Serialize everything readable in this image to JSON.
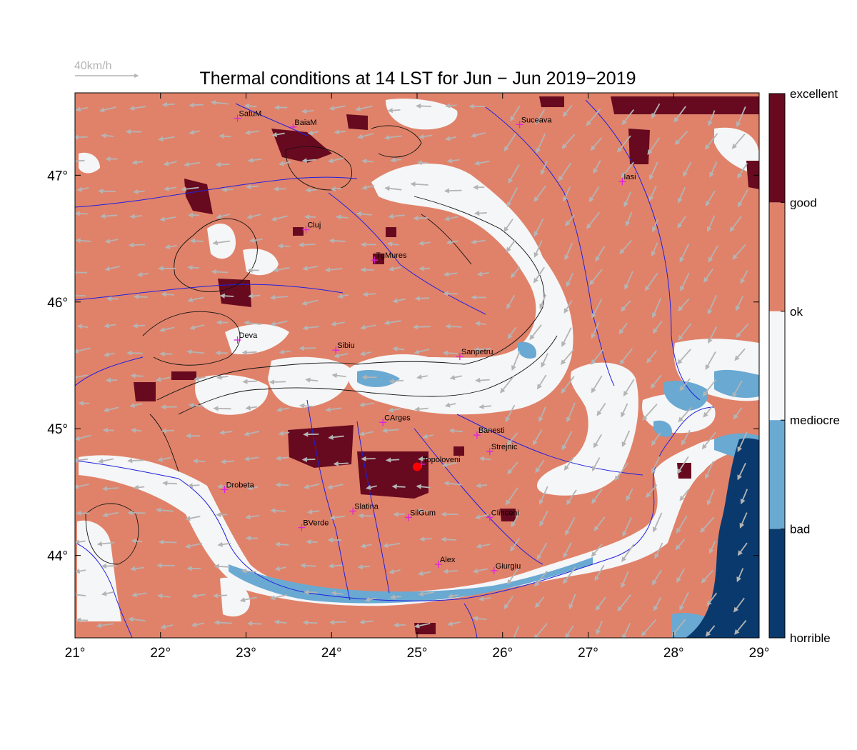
{
  "chart_data": {
    "type": "heatmap",
    "title": "Thermal conditions at 14 LST for Jun − Jun  2019−2019",
    "wind_reference": "40km/h",
    "x_ticks": [
      "21°",
      "22°",
      "23°",
      "24°",
      "25°",
      "26°",
      "27°",
      "28°",
      "29°"
    ],
    "y_ticks": [
      "44°",
      "45°",
      "46°",
      "47°"
    ],
    "xlim": [
      21,
      29
    ],
    "ylim": [
      43.35,
      47.65
    ],
    "colorbar": [
      {
        "label": "excellent",
        "color": "#670a1f"
      },
      {
        "label": "good",
        "color": "#e0826a"
      },
      {
        "label": "ok",
        "color": "#f5f6f7"
      },
      {
        "label": "mediocre",
        "color": "#6aa9d2"
      },
      {
        "label": "bad",
        "color": "#0a3a6d"
      },
      {
        "label": "horrible",
        "color": ""
      }
    ],
    "dominant_class": "good",
    "cities": [
      {
        "name": "SatuM",
        "lon": 22.9,
        "lat": 47.45
      },
      {
        "name": "BaiaM",
        "lon": 23.55,
        "lat": 47.38
      },
      {
        "name": "Suceava",
        "lon": 26.2,
        "lat": 47.4
      },
      {
        "name": "Iasi",
        "lon": 27.4,
        "lat": 46.95
      },
      {
        "name": "Cluj",
        "lon": 23.7,
        "lat": 46.57
      },
      {
        "name": "TgMures",
        "lon": 24.5,
        "lat": 46.33
      },
      {
        "name": "Deva",
        "lon": 22.9,
        "lat": 45.7
      },
      {
        "name": "Sibiu",
        "lon": 24.05,
        "lat": 45.62
      },
      {
        "name": "Sanpetru",
        "lon": 25.5,
        "lat": 45.57
      },
      {
        "name": "CArges",
        "lon": 24.6,
        "lat": 45.05
      },
      {
        "name": "Banesti",
        "lon": 25.7,
        "lat": 44.95
      },
      {
        "name": "Strejnic",
        "lon": 25.85,
        "lat": 44.82
      },
      {
        "name": "Topoloveni",
        "lon": 25.05,
        "lat": 44.72
      },
      {
        "name": "Drobeta",
        "lon": 22.75,
        "lat": 44.52
      },
      {
        "name": "Slatina",
        "lon": 24.25,
        "lat": 44.35
      },
      {
        "name": "SilGum",
        "lon": 24.9,
        "lat": 44.3
      },
      {
        "name": "Clinceni",
        "lon": 25.85,
        "lat": 44.3
      },
      {
        "name": "BVerde",
        "lon": 23.65,
        "lat": 44.22
      },
      {
        "name": "Alex",
        "lon": 25.25,
        "lat": 43.93
      },
      {
        "name": "Giurgiu",
        "lon": 25.9,
        "lat": 43.88
      }
    ],
    "site_marker": {
      "name": "Topoloveni",
      "lon": 25.0,
      "lat": 44.7,
      "color": "#ff0000"
    }
  }
}
